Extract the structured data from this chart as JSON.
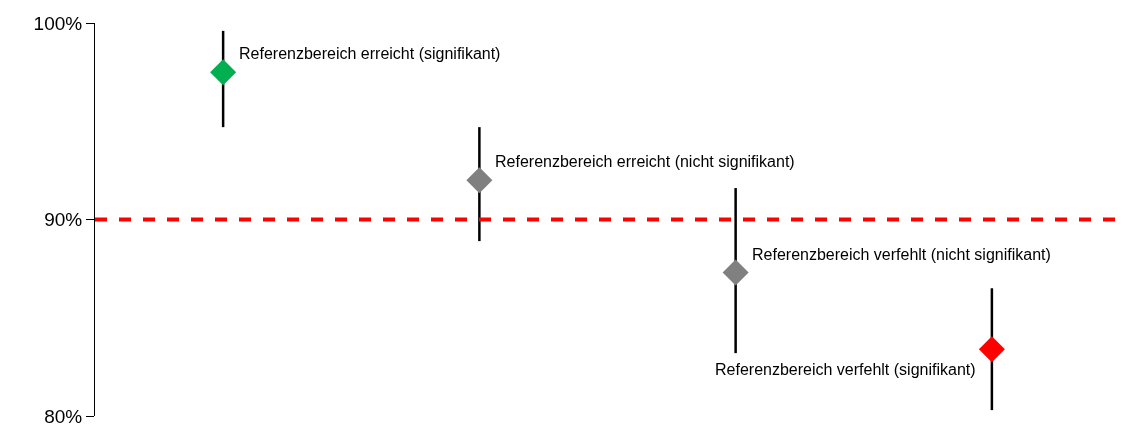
{
  "chart_data": {
    "type": "scatter",
    "categories": [
      null,
      null,
      null,
      null
    ],
    "values": [
      97.5,
      92.0,
      87.3,
      83.4
    ],
    "colors": [
      "#00b050",
      "#808080",
      "#808080",
      "#ff0000"
    ],
    "errors": [
      [
        94.7,
        99.6
      ],
      [
        88.9,
        94.7
      ],
      [
        83.2,
        91.6
      ],
      [
        80.3,
        86.5
      ]
    ],
    "value_labels": [
      "Referenzbereich erreicht (signifikant)",
      "Referenzbereich erreicht (nicht signifikant)",
      "Referenzbereich verfehlt (nicht signifikant)",
      "Referenzbereich verfehlt (signifikant)"
    ],
    "ylim": [
      80,
      100
    ],
    "yticks": [
      {
        "value": 80,
        "label": "80%"
      },
      {
        "value": 90,
        "label": "90%"
      },
      {
        "value": 100,
        "label": "100%"
      }
    ],
    "ref_lines": [
      {
        "axis": "y",
        "value": 90,
        "color": "#ff0000",
        "line_style": "dashed"
      }
    ],
    "grid": false,
    "marker": "diamond",
    "tick_labels": "y"
  }
}
